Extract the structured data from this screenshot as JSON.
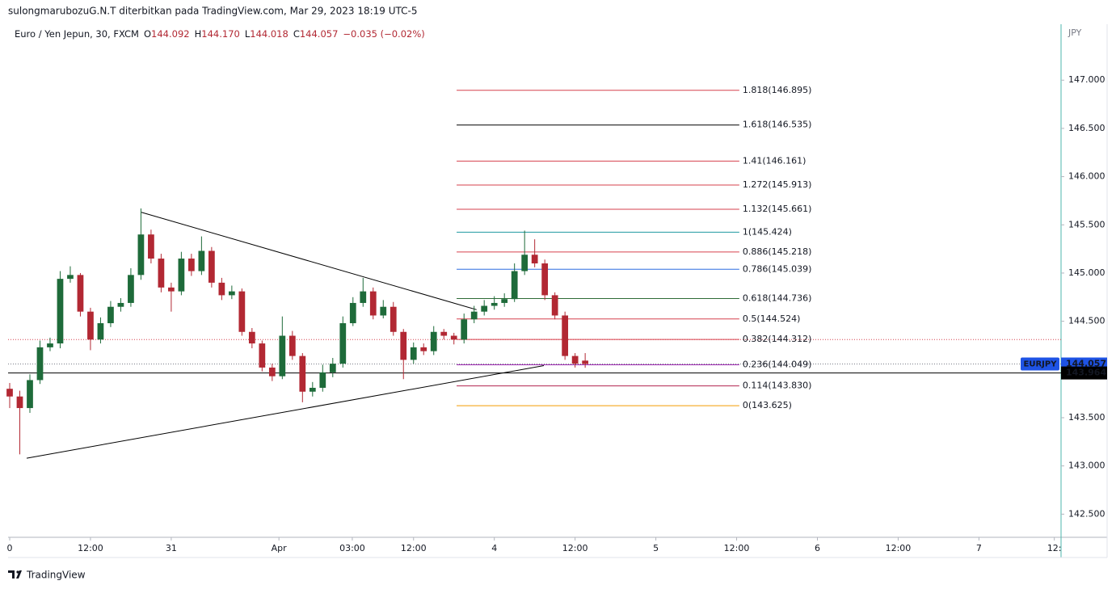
{
  "header": {
    "publisher": "sulongmarubozuG.N.T diterbitkan pada TradingView.com, Mar 29, 2023 18:19 UTC-5",
    "symbol": "Euro / Yen Jepun, 30, FXCM",
    "ohlc": [
      {
        "key": "O",
        "value": "144.092"
      },
      {
        "key": "H",
        "value": "144.170"
      },
      {
        "key": "L",
        "value": "144.018"
      },
      {
        "key": "C",
        "value": "144.057"
      }
    ],
    "change": "−0.035 (−0.02%)"
  },
  "chart_data": {
    "type": "candlestick",
    "currency": "JPY",
    "x": [
      0,
      1.5,
      3,
      4.5,
      6,
      7.5,
      9,
      10.5,
      12,
      13.5,
      15,
      16.5,
      18,
      19.5,
      21,
      22.5,
      24,
      25.5,
      27,
      28.5,
      30,
      31.5,
      33,
      34.5,
      36,
      37.5,
      39,
      40.5,
      42,
      43.5,
      45,
      46.5,
      48,
      49.5,
      51,
      52.5,
      54,
      55.5,
      57,
      58.5,
      60,
      61.5,
      63,
      64.5,
      66,
      67.5,
      69,
      70.5,
      72,
      73.5,
      75,
      76.5,
      78,
      79.5,
      81,
      82.5,
      84,
      85.5
    ],
    "open": [
      143.8,
      143.72,
      143.6,
      143.89,
      144.23,
      144.27,
      144.94,
      144.98,
      144.6,
      144.31,
      144.48,
      144.65,
      144.69,
      144.98,
      145.4,
      145.15,
      144.85,
      144.81,
      145.15,
      145.02,
      145.23,
      144.9,
      144.77,
      144.81,
      144.39,
      144.27,
      144.02,
      143.93,
      144.35,
      144.14,
      143.77,
      143.81,
      143.97,
      144.06,
      144.48,
      144.69,
      144.81,
      144.56,
      144.65,
      144.39,
      144.1,
      144.23,
      144.19,
      144.39,
      144.35,
      144.31,
      144.52,
      144.6,
      144.66,
      144.69,
      144.73,
      145.02,
      145.19,
      145.1,
      144.77,
      144.56,
      144.14,
      144.092
    ],
    "high": [
      143.86,
      143.78,
      143.95,
      144.3,
      144.33,
      145.02,
      145.07,
      145.0,
      144.64,
      144.54,
      144.71,
      144.74,
      145.05,
      145.67,
      145.45,
      145.2,
      144.9,
      145.22,
      145.2,
      145.38,
      145.27,
      144.95,
      144.87,
      144.84,
      144.43,
      144.3,
      144.06,
      144.55,
      144.4,
      144.17,
      143.87,
      144.05,
      144.12,
      144.55,
      144.75,
      144.95,
      144.85,
      144.72,
      144.7,
      144.42,
      144.28,
      144.27,
      144.45,
      144.42,
      144.38,
      144.58,
      144.66,
      144.72,
      144.76,
      144.79,
      145.1,
      145.44,
      145.35,
      145.14,
      144.8,
      144.6,
      144.17,
      144.17
    ],
    "low": [
      143.6,
      143.12,
      143.55,
      143.85,
      144.19,
      144.22,
      144.9,
      144.55,
      144.2,
      144.27,
      144.44,
      144.6,
      144.65,
      144.93,
      145.1,
      144.8,
      144.6,
      144.77,
      144.97,
      144.98,
      144.85,
      144.72,
      144.73,
      144.35,
      144.22,
      143.98,
      143.88,
      143.9,
      144.1,
      143.66,
      143.72,
      143.77,
      143.92,
      144.02,
      144.45,
      144.65,
      144.52,
      144.53,
      144.35,
      143.9,
      144.06,
      144.15,
      144.15,
      144.31,
      144.26,
      144.27,
      144.48,
      144.56,
      144.62,
      144.65,
      144.7,
      144.98,
      145.06,
      144.72,
      144.52,
      144.1,
      144.02,
      144.018
    ],
    "close": [
      143.72,
      143.6,
      143.89,
      144.23,
      144.27,
      144.94,
      144.98,
      144.6,
      144.31,
      144.48,
      144.65,
      144.69,
      144.98,
      145.4,
      145.15,
      144.85,
      144.81,
      145.15,
      145.02,
      145.23,
      144.9,
      144.77,
      144.81,
      144.39,
      144.27,
      144.02,
      143.93,
      144.35,
      144.14,
      143.77,
      143.81,
      143.97,
      144.06,
      144.48,
      144.69,
      144.81,
      144.56,
      144.65,
      144.39,
      144.1,
      144.23,
      144.19,
      144.39,
      144.35,
      144.31,
      144.52,
      144.6,
      144.66,
      144.69,
      144.73,
      145.02,
      145.19,
      145.1,
      144.77,
      144.56,
      144.14,
      144.06,
      144.057
    ],
    "up_color": "#1e6b3a",
    "down_color": "#b22833",
    "xlim": [
      -0.24,
      156.2
    ],
    "xticks": [
      0,
      {
        "value": 12,
        "label": "12:00"
      },
      {
        "value": 24,
        "label": "31"
      },
      {
        "value": 40,
        "label": "Apr"
      },
      {
        "value": 50.9,
        "label": "03:00"
      },
      {
        "value": 60,
        "label": "12:00"
      },
      {
        "value": 72,
        "label": "4"
      },
      {
        "value": 84,
        "label": "12:00"
      },
      {
        "value": 96,
        "label": "5"
      },
      {
        "value": 108,
        "label": "12:00"
      },
      {
        "value": 120,
        "label": "6"
      },
      {
        "value": 132,
        "label": "12:00"
      },
      {
        "value": 144,
        "label": "7"
      },
      {
        "value": 155.2,
        "label": "12:"
      }
    ],
    "ylim": [
      142.26,
      147.58
    ],
    "yticks": [
      {
        "value": 142.5,
        "label": "142.500"
      },
      {
        "value": 143,
        "label": "143.000"
      },
      {
        "value": 143.5,
        "label": "143.500"
      },
      {
        "value": 144,
        "label": "144.000"
      },
      {
        "value": 144.5,
        "label": "144.500"
      },
      {
        "value": 145,
        "label": "145.000"
      },
      {
        "value": 145.5,
        "label": "145.500"
      },
      {
        "value": 146,
        "label": "146.000"
      },
      {
        "value": 146.5,
        "label": "146.500"
      },
      {
        "value": 147,
        "label": "147.000"
      }
    ],
    "fib_x": [
      66.4,
      108.4
    ],
    "fib_levels": [
      {
        "label": "1.818(146.895)",
        "value": 146.895,
        "color": "#d6404e"
      },
      {
        "label": "1.618(146.535)",
        "value": 146.535,
        "color": "#000000"
      },
      {
        "label": "1.41(146.161)",
        "value": 146.161,
        "color": "#d6404e"
      },
      {
        "label": "1.272(145.913)",
        "value": 145.913,
        "color": "#d6404e"
      },
      {
        "label": "1.132(145.661)",
        "value": 145.661,
        "color": "#d6404e"
      },
      {
        "label": "1(145.424)",
        "value": 145.424,
        "color": "#1e9aa0"
      },
      {
        "label": "0.886(145.218)",
        "value": 145.218,
        "color": "#d6404e"
      },
      {
        "label": "0.786(145.039)",
        "value": 145.039,
        "color": "#2f6fe0"
      },
      {
        "label": "0.618(144.736)",
        "value": 144.736,
        "color": "#2e6b36"
      },
      {
        "label": "0.5(144.524)",
        "value": 144.524,
        "color": "#d6404e"
      },
      {
        "label": "0.382(144.312)",
        "value": 144.312,
        "color": "#d6404e"
      },
      {
        "label": "0.236(144.049)",
        "value": 144.049,
        "color": "#9c27b0"
      },
      {
        "label": "0.114(143.830)",
        "value": 143.83,
        "color": "#b2224f"
      },
      {
        "label": "0(143.625)",
        "value": 143.625,
        "color": "#f49b00"
      }
    ],
    "trendlines": [
      {
        "x": [
          19.56,
          69.36
        ],
        "y": [
          145.63,
          144.62
        ],
        "color": "#000000"
      },
      {
        "x": [
          2.52,
          79.36
        ],
        "y": [
          143.08,
          144.04
        ],
        "color": "#000000"
      }
    ],
    "hlines": [
      {
        "value": 143.964,
        "color": "#000000",
        "dash": "none"
      },
      {
        "value": 144.31,
        "color": "#d6404e",
        "dash": "1 2"
      },
      {
        "value": 144.057,
        "color": "#787b86",
        "dash": "1 2"
      }
    ],
    "price_labels": [
      {
        "symbol": "EURJPY",
        "value": 144.057,
        "color": "#1e53e5"
      },
      {
        "value": 143.964,
        "color": "#000000"
      }
    ]
  },
  "footer": {
    "brand": "TradingView"
  }
}
